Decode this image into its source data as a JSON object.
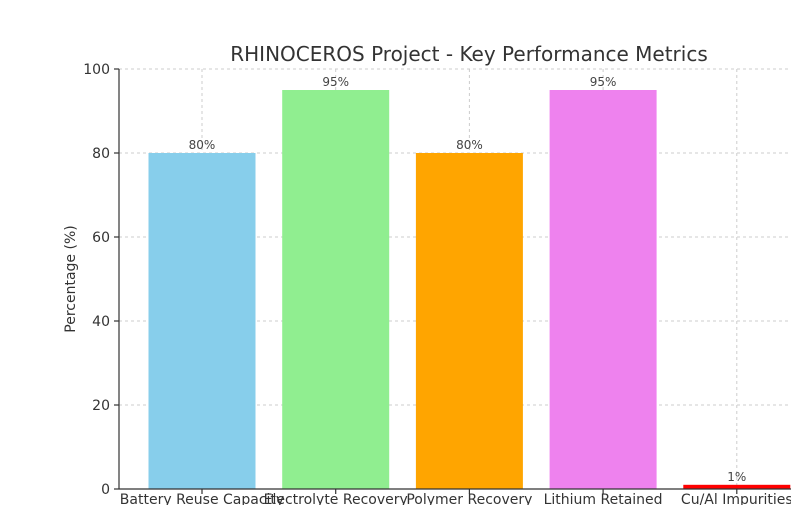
{
  "chart_data": {
    "type": "bar",
    "title": "RHINOCEROS Project - Key Performance Metrics",
    "xlabel": "",
    "ylabel": "Percentage (%)",
    "ylim": [
      0,
      100
    ],
    "yticks": [
      0,
      20,
      40,
      60,
      80,
      100
    ],
    "grid": true,
    "categories": [
      "Battery Reuse Capacity",
      "Electrolyte Recovery",
      "Polymer Recovery",
      "Lithium Retained",
      "Cu/Al Impurities"
    ],
    "values": [
      80,
      95,
      80,
      95,
      1
    ],
    "data_labels": [
      "80%",
      "95%",
      "80%",
      "95%",
      "1%"
    ],
    "colors": [
      "#87ceeb",
      "#90ee90",
      "#ffa500",
      "#ee82ee",
      "#ff0000"
    ]
  }
}
